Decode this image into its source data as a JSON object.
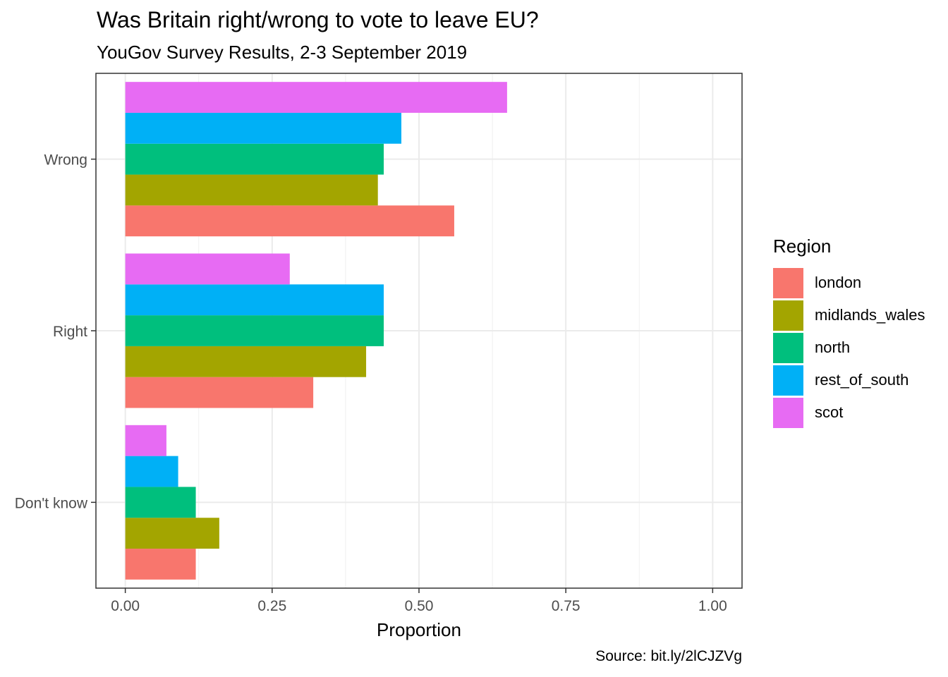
{
  "chart_data": {
    "type": "bar",
    "orientation": "horizontal",
    "title": "Was Britain right/wrong to vote to leave EU?",
    "subtitle": "YouGov Survey Results, 2-3 September 2019",
    "caption": "Source: bit.ly/2lCJZVg",
    "xlabel": "Proportion",
    "ylabel": "",
    "xlim": [
      -0.05,
      1.05
    ],
    "x_ticks": [
      "0.00",
      "0.25",
      "0.50",
      "0.75",
      "1.00"
    ],
    "categories": [
      "Wrong",
      "Right",
      "Don't know"
    ],
    "legend_title": "Region",
    "legend_position": "right",
    "grid": true,
    "series": [
      {
        "name": "london",
        "color": "#F8766D",
        "values": [
          0.56,
          0.32,
          0.12
        ]
      },
      {
        "name": "midlands_wales",
        "color": "#A3A500",
        "values": [
          0.43,
          0.41,
          0.16
        ]
      },
      {
        "name": "north",
        "color": "#00BF7D",
        "values": [
          0.44,
          0.44,
          0.12
        ]
      },
      {
        "name": "rest_of_south",
        "color": "#00B0F6",
        "values": [
          0.47,
          0.44,
          0.09
        ]
      },
      {
        "name": "scot",
        "color": "#E76BF3",
        "values": [
          0.65,
          0.28,
          0.07
        ]
      }
    ]
  }
}
